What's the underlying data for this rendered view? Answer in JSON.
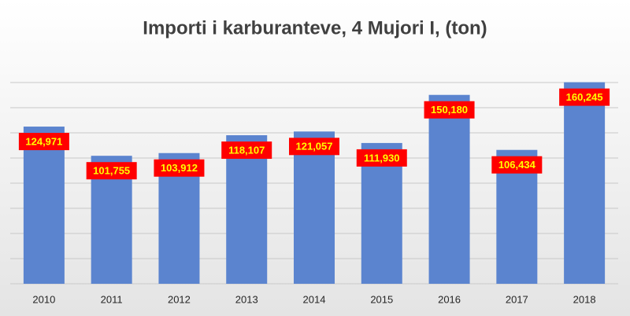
{
  "chart_data": {
    "type": "bar",
    "title": "Importi i karburanteve, 4 Mujori I, (ton)",
    "categories": [
      "2010",
      "2011",
      "2012",
      "2013",
      "2014",
      "2015",
      "2016",
      "2017",
      "2018"
    ],
    "values": [
      124971,
      101755,
      103912,
      118107,
      121057,
      111930,
      150180,
      106434,
      160245
    ],
    "value_labels": [
      "124,971",
      "101,755",
      "103,912",
      "118,107",
      "121,057",
      "111,930",
      "150,180",
      "106,434",
      "160,245"
    ],
    "color": "#5b84cf",
    "ylim": [
      0,
      160000
    ],
    "yticks": [
      0,
      20000,
      40000,
      60000,
      80000,
      100000,
      120000,
      140000,
      160000
    ],
    "grid": true
  }
}
